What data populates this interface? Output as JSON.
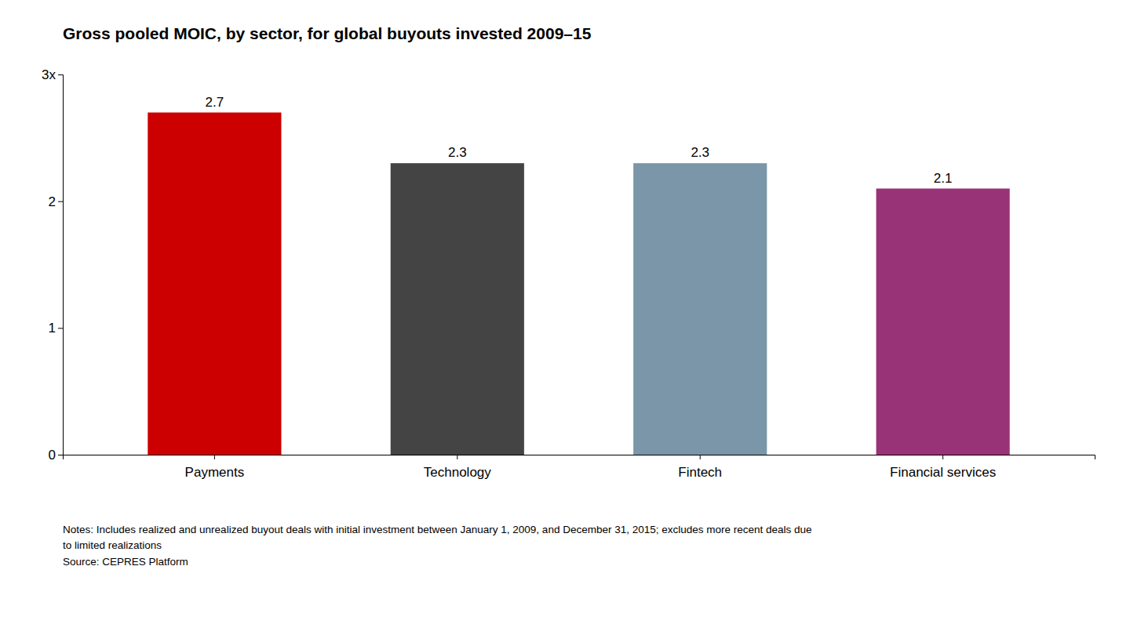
{
  "chart_data": {
    "type": "bar",
    "title": "Gross pooled MOIC, by sector, for global buyouts invested 2009–15",
    "categories": [
      "Payments",
      "Technology",
      "Fintech",
      "Financial services"
    ],
    "values": [
      2.7,
      2.3,
      2.3,
      2.1
    ],
    "colors": [
      "#cc0000",
      "#444444",
      "#7a96a8",
      "#993377"
    ],
    "ylim": [
      0,
      3.0
    ],
    "yticks": [
      0,
      1,
      2,
      {
        "value": 3,
        "label": "3x"
      }
    ],
    "grid": false,
    "data_labels": true,
    "annotations": [
      "Notes: Includes realized and unrealized buyout deals with initial investment between January 1, 2009, and December 31, 2015; excludes more recent deals due",
      "to limited realizations",
      "Source: CEPRES Platform"
    ]
  }
}
